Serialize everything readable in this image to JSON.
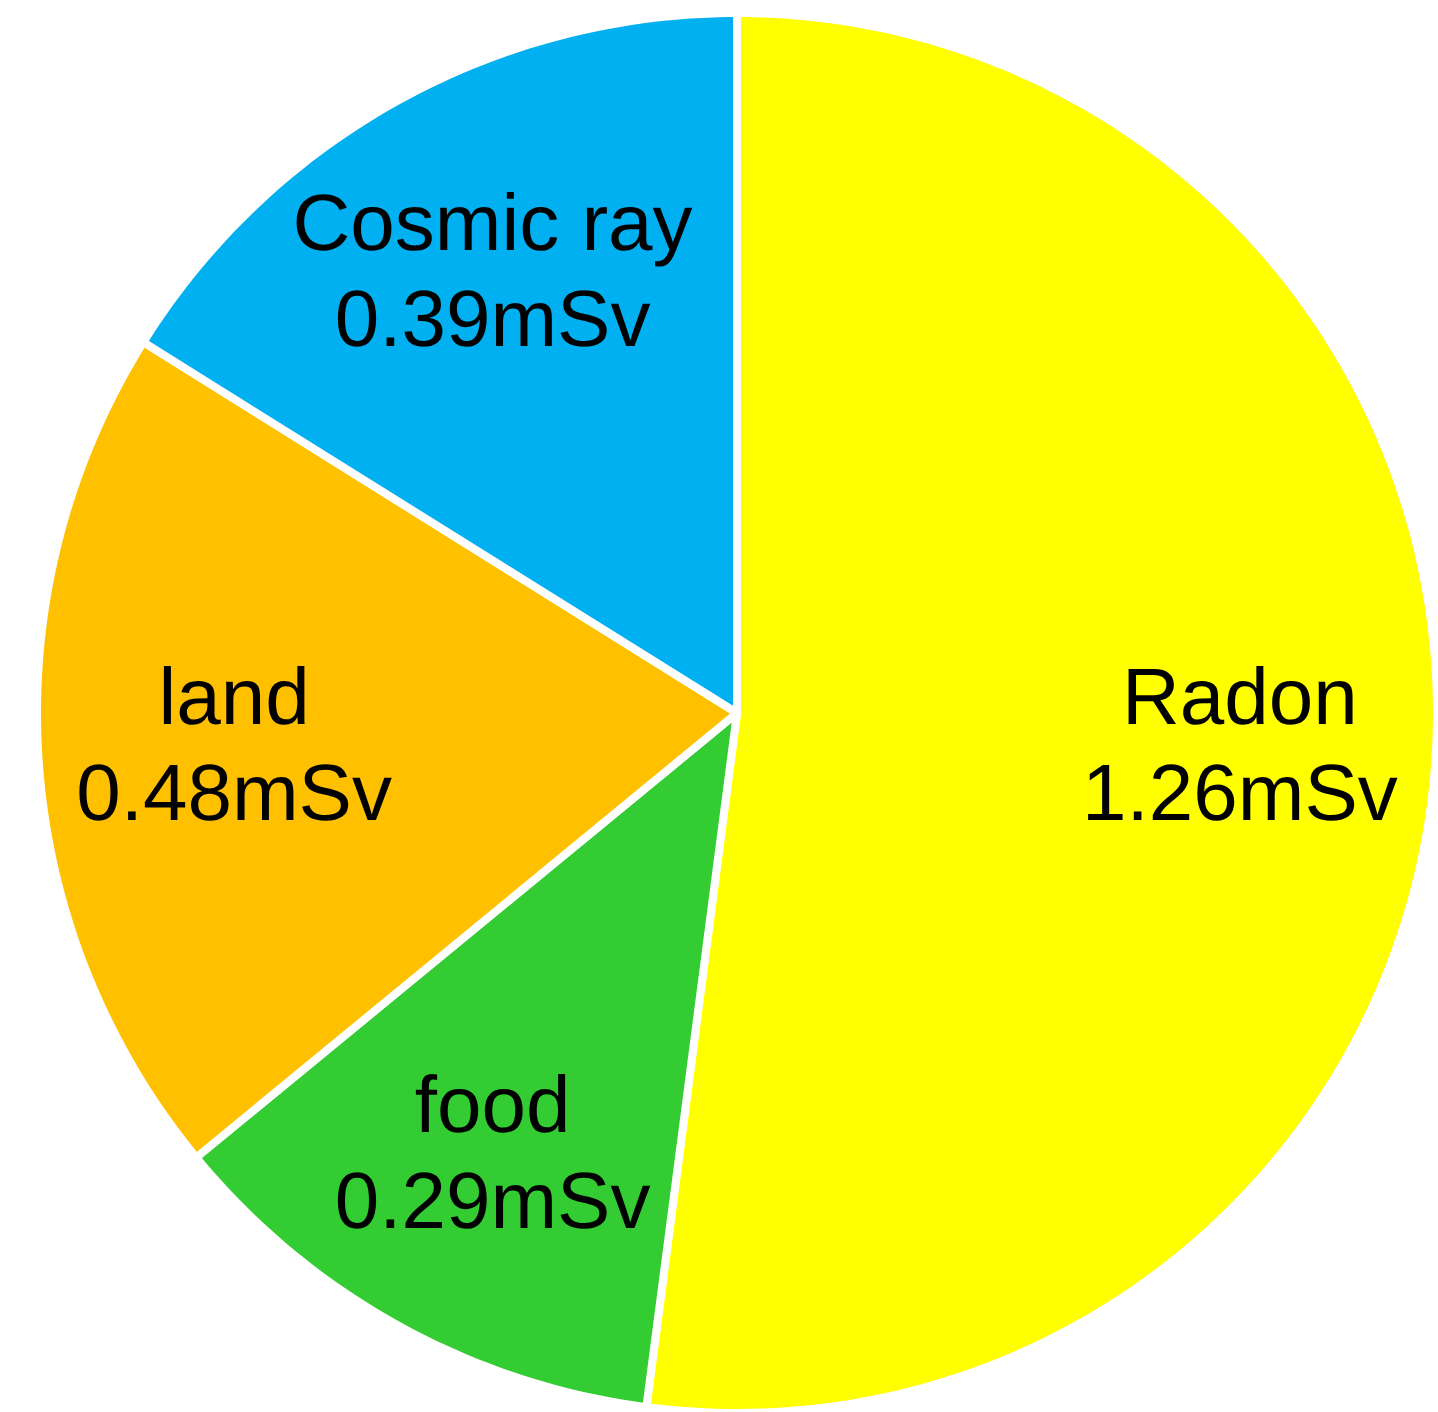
{
  "chart_data": {
    "type": "pie",
    "categories": [
      "Radon",
      "food",
      "land",
      "Cosmic ray"
    ],
    "values": [
      1.26,
      0.29,
      0.48,
      0.39
    ],
    "colors": [
      "#ffff00",
      "#33cc33",
      "#ffc000",
      "#00b0f0"
    ],
    "value_labels": [
      "1.26mSv",
      "0.29mSv",
      "0.48mSv",
      "0.39mSv"
    ]
  }
}
